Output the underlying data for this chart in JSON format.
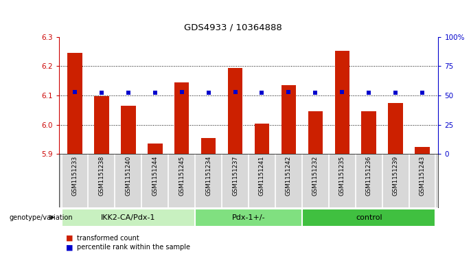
{
  "title": "GDS4933 / 10364888",
  "samples": [
    "GSM1151233",
    "GSM1151238",
    "GSM1151240",
    "GSM1151244",
    "GSM1151245",
    "GSM1151234",
    "GSM1151237",
    "GSM1151241",
    "GSM1151242",
    "GSM1151232",
    "GSM1151235",
    "GSM1151236",
    "GSM1151239",
    "GSM1151243"
  ],
  "red_values": [
    6.245,
    6.097,
    6.065,
    5.935,
    6.145,
    5.955,
    6.193,
    6.003,
    6.135,
    6.045,
    6.253,
    6.045,
    6.073,
    5.925
  ],
  "blue_values": [
    53,
    52,
    52,
    52,
    53,
    52,
    53,
    52,
    53,
    52,
    53,
    52,
    52,
    52
  ],
  "groups": [
    {
      "label": "IKK2-CA/Pdx-1",
      "start": 0,
      "end": 5,
      "color": "#c8f0c0"
    },
    {
      "label": "Pdx-1+/-",
      "start": 5,
      "end": 9,
      "color": "#80e080"
    },
    {
      "label": "control",
      "start": 9,
      "end": 14,
      "color": "#40c040"
    }
  ],
  "ylim_left": [
    5.9,
    6.3
  ],
  "ylim_right": [
    0,
    100
  ],
  "yticks_left": [
    5.9,
    6.0,
    6.1,
    6.2,
    6.3
  ],
  "yticks_right": [
    0,
    25,
    50,
    75,
    100
  ],
  "ytick_labels_right": [
    "0",
    "25",
    "50",
    "75",
    "100%"
  ],
  "grid_values": [
    6.0,
    6.1,
    6.2
  ],
  "left_tick_color": "#cc0000",
  "right_tick_color": "#0000cc",
  "bar_color": "#cc2000",
  "dot_color": "#0000cc",
  "legend_items": [
    "transformed count",
    "percentile rank within the sample"
  ],
  "legend_colors": [
    "#cc2000",
    "#0000cc"
  ],
  "group_label": "genotype/variation",
  "sample_bg": "#d8d8d8"
}
